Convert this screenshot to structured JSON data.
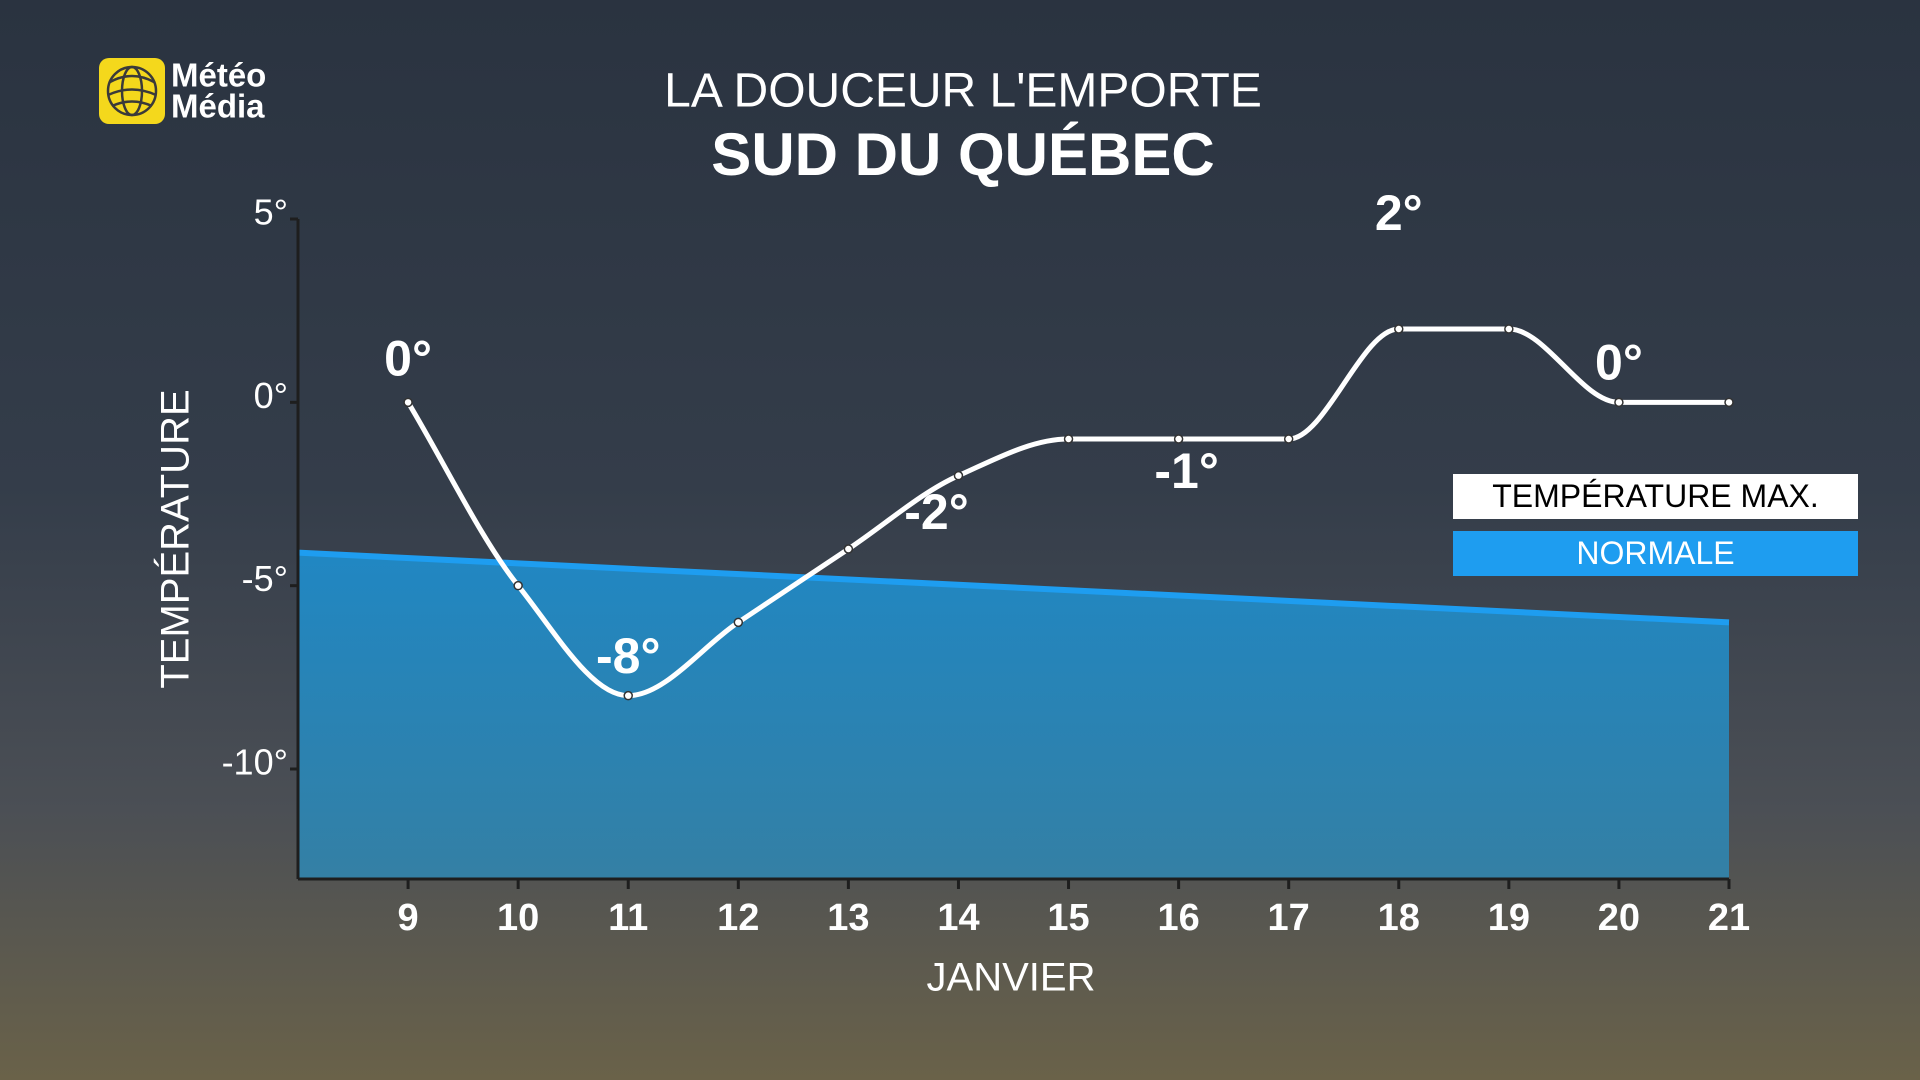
{
  "logo": {
    "line1": "Météo",
    "line2": "Média"
  },
  "chart_data": {
    "type": "line",
    "title": "LA DOUCEUR L'EMPORTE",
    "subtitle": "SUD DU QUÉBEC",
    "x_label": "JANVIER",
    "y_label": "TEMPÉRATURE",
    "xlim": [
      8,
      21
    ],
    "xticks": [
      9,
      10,
      11,
      12,
      13,
      14,
      15,
      16,
      17,
      18,
      19,
      20,
      21
    ],
    "ylim": [
      -13,
      5
    ],
    "yticks": [
      {
        "value": 5,
        "label": "5°"
      },
      {
        "value": 0,
        "label": "0°"
      },
      {
        "value": -5,
        "label": "-5°"
      },
      {
        "value": -10,
        "label": "-10°"
      }
    ],
    "legend": "right",
    "series": [
      {
        "name": "TEMPÉRATURE MAX.",
        "color": "#ffffff",
        "x": [
          9,
          10,
          11,
          12,
          13,
          14,
          15,
          16,
          17,
          18,
          19,
          20,
          21
        ],
        "values": [
          0,
          -5,
          -8,
          -6,
          -4,
          -2,
          -1,
          -1,
          -1,
          2,
          2,
          0,
          0
        ],
        "value_labels": [
          "0°",
          null,
          "-8°",
          null,
          null,
          "-2°",
          null,
          "-1°",
          null,
          "2°",
          null,
          "0°",
          null
        ]
      },
      {
        "name": "NORMALE",
        "color": "#1e9df0",
        "x": [
          8,
          21
        ],
        "values": [
          -4.1,
          -6
        ],
        "fill": true
      }
    ]
  }
}
